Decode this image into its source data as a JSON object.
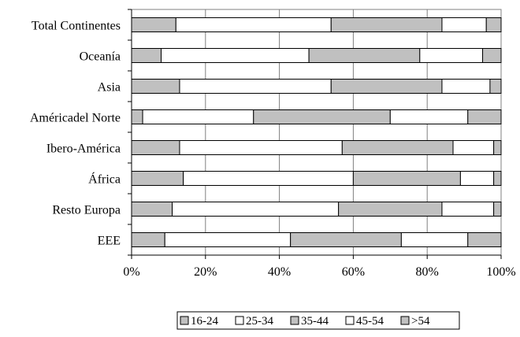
{
  "chart_data": {
    "type": "bar",
    "orientation": "horizontal",
    "stacked": "percent",
    "categories": [
      "Total Continentes",
      "Oceanía",
      "Asia",
      "Américadel Norte",
      "Ibero-América",
      "África",
      "Resto Europa",
      "EEE"
    ],
    "series": [
      {
        "name": "16-24",
        "values": [
          12,
          8,
          13,
          3,
          13,
          14,
          11,
          9
        ]
      },
      {
        "name": "25-34",
        "values": [
          42,
          40,
          41,
          30,
          44,
          46,
          45,
          34
        ]
      },
      {
        "name": "35-44",
        "values": [
          30,
          30,
          30,
          37,
          30,
          29,
          28,
          30
        ]
      },
      {
        "name": "45-54",
        "values": [
          12,
          17,
          13,
          21,
          11,
          9,
          14,
          18
        ]
      },
      {
        "name": ">54",
        "values": [
          4,
          5,
          3,
          9,
          2,
          2,
          2,
          9
        ]
      }
    ],
    "xlim": [
      0,
      100
    ],
    "x_ticks": [
      "0%",
      "20%",
      "40%",
      "60%",
      "80%",
      "100%"
    ],
    "grid": "vertical",
    "legend_position": "bottom",
    "colors": {
      "16-24": "#c0c0c0",
      "25-34": "#ffffff",
      "35-44": "#c0c0c0",
      "45-54": "#ffffff",
      ">54": "#c0c0c0",
      "grid": "#808080",
      "border": "#000000"
    }
  }
}
